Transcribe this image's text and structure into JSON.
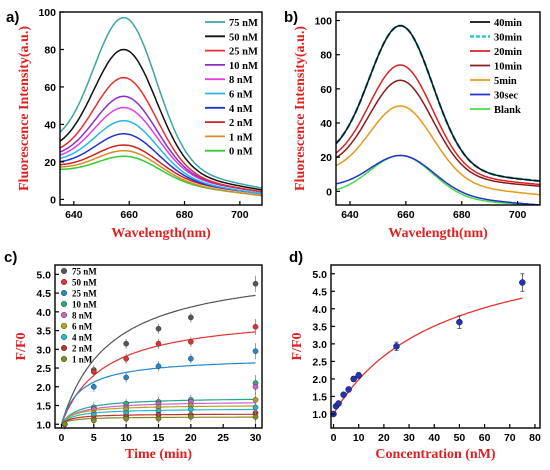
{
  "chart_data": [
    {
      "panel": "a)",
      "type": "line",
      "xlabel": "Wavelength(nm)",
      "ylabel": "Fluorescence Intensity(a.u.)",
      "xlim": [
        635,
        708
      ],
      "ylim": [
        -3,
        100
      ],
      "xticks": [
        640,
        660,
        680,
        700
      ],
      "yticks": [
        0,
        20,
        40,
        60,
        80,
        100
      ],
      "legend_position": "top-right",
      "series": [
        {
          "name": "75 nM",
          "color": "#3aa6a0",
          "peak": 97,
          "base_left": 27,
          "base_right": 6
        },
        {
          "name": "50 nM",
          "color": "#111111",
          "peak": 80,
          "base_left": 24,
          "base_right": 5
        },
        {
          "name": "25 nM",
          "color": "#e53030",
          "peak": 65,
          "base_left": 22,
          "base_right": 4
        },
        {
          "name": "10 nM",
          "color": "#8b2fc9",
          "peak": 55,
          "base_left": 21,
          "base_right": 4
        },
        {
          "name": "8 nM",
          "color": "#e040e0",
          "peak": 49,
          "base_left": 20,
          "base_right": 4
        },
        {
          "name": "6 nM",
          "color": "#22b8e8",
          "peak": 42,
          "base_left": 19,
          "base_right": 3
        },
        {
          "name": "4 nM",
          "color": "#2233cc",
          "peak": 35,
          "base_left": 18,
          "base_right": 3
        },
        {
          "name": "2 nM",
          "color": "#cc2222",
          "peak": 29,
          "base_left": 17,
          "base_right": 3
        },
        {
          "name": "1 nM",
          "color": "#d98b2b",
          "peak": 26,
          "base_left": 16,
          "base_right": 2
        },
        {
          "name": "0 nM",
          "color": "#33cc33",
          "peak": 23,
          "base_left": 15,
          "base_right": 2
        }
      ]
    },
    {
      "panel": "b)",
      "type": "line",
      "xlabel": "Wavelength(nm)",
      "ylabel": "Fluorescence Intensity(a.u.)",
      "xlim": [
        635,
        708
      ],
      "ylim": [
        -8,
        105
      ],
      "xticks": [
        640,
        660,
        680,
        700
      ],
      "yticks": [
        0,
        20,
        40,
        60,
        80,
        100
      ],
      "legend_position": "top-right",
      "series": [
        {
          "name": "40min",
          "color": "#111111",
          "dashed": false,
          "peak": 97,
          "base_left": 18,
          "base_right": 6
        },
        {
          "name": "30min",
          "color": "#2cc6cf",
          "dashed": true,
          "peak": 97,
          "base_left": 18,
          "base_right": 6
        },
        {
          "name": "20min",
          "color": "#dd2222",
          "dashed": false,
          "peak": 74,
          "base_left": 15,
          "base_right": 4
        },
        {
          "name": "10min",
          "color": "#8b1a1a",
          "dashed": false,
          "peak": 65,
          "base_left": 13,
          "base_right": 3
        },
        {
          "name": "5min",
          "color": "#e79a1a",
          "dashed": false,
          "peak": 50,
          "base_left": 10,
          "base_right": -2
        },
        {
          "name": "30sec",
          "color": "#2233cc",
          "dashed": false,
          "peak": 21,
          "base_left": 2,
          "base_right": -8
        },
        {
          "name": "Blank",
          "color": "#44dd44",
          "dashed": false,
          "peak": 21,
          "base_left": -2,
          "base_right": -8
        }
      ]
    },
    {
      "panel": "c)",
      "type": "scatter",
      "xlabel": "Time (min)",
      "ylabel": "F/F0",
      "xlim": [
        -1,
        31
      ],
      "ylim": [
        0.9,
        5.25
      ],
      "xticks": [
        0,
        5,
        10,
        15,
        20,
        25,
        30
      ],
      "yticks": [
        1.0,
        1.5,
        2.0,
        2.5,
        3.0,
        3.5,
        4.0,
        4.5,
        5.0
      ],
      "legend_position": "top-left",
      "x": [
        0.5,
        5,
        10,
        15,
        20,
        30
      ],
      "series": [
        {
          "name": "75 nM",
          "color": "#555555",
          "values": [
            1.0,
            2.45,
            3.15,
            3.55,
            3.85,
            4.75
          ],
          "fit_max": 5.3,
          "fit_k": 7.5
        },
        {
          "name": "50 nM",
          "color": "#e53030",
          "values": [
            1.0,
            2.4,
            2.75,
            3.15,
            3.2,
            3.6
          ],
          "fit_max": 4.0,
          "fit_k": 6.5
        },
        {
          "name": "25 nM",
          "color": "#2288cc",
          "values": [
            1.0,
            2.0,
            2.25,
            2.55,
            2.75,
            2.95
          ],
          "fit_max": 2.8,
          "fit_k": 3.0
        },
        {
          "name": "10 nM",
          "color": "#22aa88",
          "values": [
            1.0,
            1.45,
            1.55,
            1.6,
            1.65,
            2.1
          ],
          "fit_max": 1.72,
          "fit_k": 2.5
        },
        {
          "name": "8 nM",
          "color": "#d060d0",
          "values": [
            1.0,
            1.4,
            1.45,
            1.55,
            1.6,
            2.0
          ],
          "fit_max": 1.62,
          "fit_k": 2.5
        },
        {
          "name": "6 nM",
          "color": "#bba020",
          "values": [
            1.0,
            1.3,
            1.4,
            1.45,
            1.5,
            1.65
          ],
          "fit_max": 1.52,
          "fit_k": 2.0
        },
        {
          "name": "4 nM",
          "color": "#22bbcc",
          "values": [
            1.0,
            1.25,
            1.3,
            1.35,
            1.4,
            1.45
          ],
          "fit_max": 1.42,
          "fit_k": 2.0
        },
        {
          "name": "2 nM",
          "color": "#bb3333",
          "values": [
            1.0,
            1.15,
            1.2,
            1.25,
            1.25,
            1.3
          ],
          "fit_max": 1.28,
          "fit_k": 1.5
        },
        {
          "name": "1 nM",
          "color": "#888822",
          "values": [
            1.0,
            1.1,
            1.15,
            1.15,
            1.2,
            1.2
          ],
          "fit_max": 1.2,
          "fit_k": 1.5
        }
      ]
    },
    {
      "panel": "d)",
      "type": "scatter",
      "xlabel": "Concentration (nM)",
      "ylabel": "F/F0",
      "xlim": [
        -1,
        82
      ],
      "ylim": [
        0.6,
        5.25
      ],
      "xticks": [
        0,
        10,
        20,
        30,
        40,
        50,
        60,
        70,
        80
      ],
      "yticks": [
        1.0,
        1.5,
        2.0,
        2.5,
        3.0,
        3.5,
        4.0,
        4.5,
        5.0
      ],
      "points_x": [
        0,
        1,
        2,
        4,
        6,
        8,
        10,
        25,
        50,
        75
      ],
      "points_y": [
        1.0,
        1.22,
        1.3,
        1.55,
        1.7,
        2.0,
        2.1,
        2.93,
        3.62,
        4.75
      ],
      "errors": [
        0.05,
        0.05,
        0.05,
        0.06,
        0.07,
        0.07,
        0.08,
        0.12,
        0.18,
        0.25
      ],
      "fit_color": "#e53030",
      "point_color": "#2233bb"
    }
  ]
}
